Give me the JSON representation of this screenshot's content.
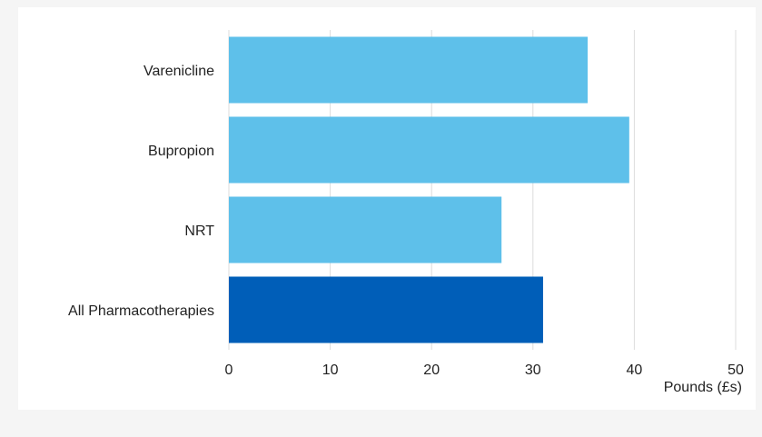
{
  "chart_data": {
    "type": "bar",
    "orientation": "horizontal",
    "title": "",
    "xlabel": "Pounds (£s)",
    "ylabel": "",
    "categories": [
      "Varenicline",
      "Bupropion",
      "NRT",
      "All Pharmacotherapies"
    ],
    "values": [
      35.4,
      39.5,
      26.9,
      31.0
    ],
    "colors": [
      "#5ec0ea",
      "#5ec0ea",
      "#5ec0ea",
      "#005eb8"
    ],
    "xlim": [
      0,
      50
    ],
    "xticks": [
      0,
      10,
      20,
      30,
      40,
      50
    ],
    "xtick_labels": [
      "0",
      "10",
      "20",
      "30",
      "40",
      "50"
    ],
    "grid": true,
    "legend": "none"
  }
}
